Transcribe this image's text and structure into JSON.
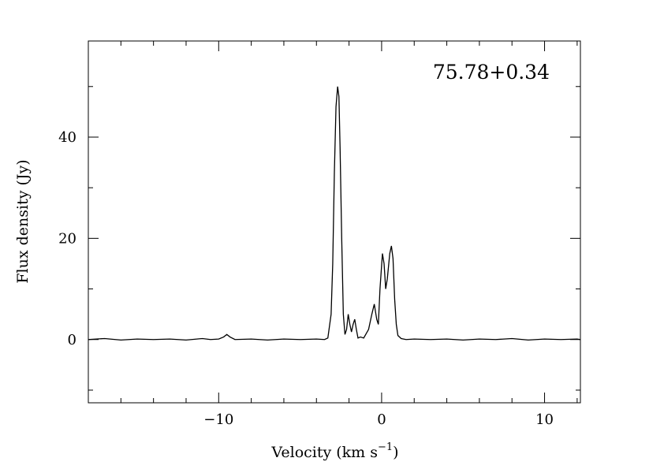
{
  "chart_data": {
    "type": "line",
    "title": "",
    "annotation": "75.78+0.34",
    "xlabel": "Velocity (km s",
    "xlabel_superscript": "−1",
    "xlabel_suffix": ")",
    "ylabel": "Flux density (Jy)",
    "xlim": [
      -18,
      12.2
    ],
    "ylim": [
      -12.5,
      59
    ],
    "x_ticks": [
      -10,
      0,
      10
    ],
    "x_tick_labels": [
      "−10",
      "0",
      "10"
    ],
    "y_ticks": [
      0,
      20,
      40
    ],
    "y_tick_labels": [
      "0",
      "20",
      "40"
    ],
    "grid": false,
    "series": [
      {
        "points": [
          [
            -18.0,
            0.0
          ],
          [
            -17.0,
            0.2
          ],
          [
            -16.0,
            -0.1
          ],
          [
            -15.0,
            0.1
          ],
          [
            -14.0,
            0.0
          ],
          [
            -13.0,
            0.1
          ],
          [
            -12.0,
            -0.1
          ],
          [
            -11.0,
            0.2
          ],
          [
            -10.5,
            0.0
          ],
          [
            -10.0,
            0.1
          ],
          [
            -9.7,
            0.5
          ],
          [
            -9.5,
            1.0
          ],
          [
            -9.3,
            0.5
          ],
          [
            -9.0,
            0.0
          ],
          [
            -8.0,
            0.1
          ],
          [
            -7.0,
            -0.1
          ],
          [
            -6.0,
            0.1
          ],
          [
            -5.0,
            0.0
          ],
          [
            -4.0,
            0.1
          ],
          [
            -3.5,
            0.0
          ],
          [
            -3.3,
            0.3
          ],
          [
            -3.1,
            5.0
          ],
          [
            -3.0,
            15.0
          ],
          [
            -2.9,
            33.0
          ],
          [
            -2.8,
            46.0
          ],
          [
            -2.7,
            50.0
          ],
          [
            -2.62,
            48.0
          ],
          [
            -2.55,
            38.0
          ],
          [
            -2.45,
            20.0
          ],
          [
            -2.35,
            5.0
          ],
          [
            -2.25,
            1.0
          ],
          [
            -2.15,
            2.0
          ],
          [
            -2.05,
            5.0
          ],
          [
            -1.95,
            3.0
          ],
          [
            -1.85,
            1.5
          ],
          [
            -1.75,
            3.0
          ],
          [
            -1.65,
            4.0
          ],
          [
            -1.55,
            2.0
          ],
          [
            -1.45,
            0.3
          ],
          [
            -1.3,
            0.5
          ],
          [
            -1.1,
            0.3
          ],
          [
            -0.8,
            2.0
          ],
          [
            -0.6,
            5.0
          ],
          [
            -0.45,
            7.0
          ],
          [
            -0.3,
            4.0
          ],
          [
            -0.2,
            3.0
          ],
          [
            -0.1,
            10.0
          ],
          [
            0.05,
            17.0
          ],
          [
            0.15,
            15.0
          ],
          [
            0.25,
            10.0
          ],
          [
            0.35,
            12.0
          ],
          [
            0.5,
            17.0
          ],
          [
            0.6,
            18.5
          ],
          [
            0.7,
            16.0
          ],
          [
            0.8,
            8.0
          ],
          [
            0.9,
            3.0
          ],
          [
            1.0,
            0.8
          ],
          [
            1.2,
            0.2
          ],
          [
            1.5,
            0.0
          ],
          [
            2.0,
            0.1
          ],
          [
            3.0,
            0.0
          ],
          [
            4.0,
            0.1
          ],
          [
            5.0,
            -0.1
          ],
          [
            6.0,
            0.1
          ],
          [
            7.0,
            0.0
          ],
          [
            8.0,
            0.2
          ],
          [
            9.0,
            -0.1
          ],
          [
            10.0,
            0.1
          ],
          [
            11.0,
            0.0
          ],
          [
            12.0,
            0.1
          ],
          [
            12.2,
            0.0
          ]
        ],
        "color": "#000000"
      }
    ]
  }
}
